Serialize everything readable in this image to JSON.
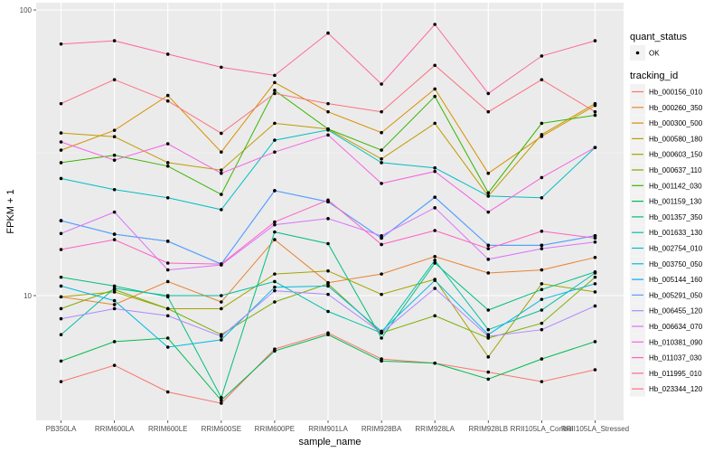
{
  "chart_data": {
    "type": "line",
    "title": "",
    "xlabel": "sample_name",
    "ylabel": "FPKM + 1",
    "y_scale": "log10",
    "ylim": [
      3.2,
      110
    ],
    "y_ticks": [
      {
        "value": 10,
        "label": "10"
      },
      {
        "value": 100,
        "label": "100"
      }
    ],
    "grid": true,
    "categories": [
      "PB350LA",
      "RRIM600LA",
      "RRIM600LE",
      "RRIM600SE",
      "RRIM600PE",
      "RRIM901LA",
      "RRIM928BA",
      "RRIM928LA",
      "RRIM928LB",
      "RRII105LA_Control",
      "RRII105LA_Stressed"
    ],
    "legend": {
      "placement": "right",
      "point_legend": {
        "title": "quant_status",
        "items": [
          "OK"
        ]
      },
      "color_legend_title": "tracking_id"
    },
    "series": [
      {
        "name": "Hb_000156_010",
        "color": "#F8766D",
        "values": [
          5.0,
          5.7,
          4.6,
          4.2,
          6.5,
          7.4,
          6.0,
          5.8,
          5.4,
          5.0,
          5.5
        ]
      },
      {
        "name": "Hb_000260_350",
        "color": "#EA8331",
        "values": [
          9.9,
          9.3,
          11.2,
          9.5,
          15.7,
          11.1,
          11.9,
          13.7,
          12.0,
          12.3,
          13.6
        ]
      },
      {
        "name": "Hb_000300_500",
        "color": "#D89000",
        "values": [
          32.3,
          37.9,
          50.2,
          31.8,
          55.7,
          44.0,
          37.2,
          52.9,
          26.8,
          36.1,
          46.3
        ]
      },
      {
        "name": "Hb_000580_180",
        "color": "#C09B00",
        "values": [
          37.1,
          36.0,
          29.2,
          27.5,
          40.1,
          38.3,
          30.1,
          40.1,
          22.3,
          36.6,
          47.0
        ]
      },
      {
        "name": "Hb_000603_150",
        "color": "#A3A500",
        "values": [
          9.9,
          10.3,
          9.0,
          9.0,
          11.9,
          12.2,
          10.1,
          11.4,
          6.1,
          11.0,
          10.3
        ]
      },
      {
        "name": "Hb_000637_110",
        "color": "#7CAE00",
        "values": [
          9.0,
          10.5,
          9.0,
          7.3,
          9.5,
          11.0,
          7.4,
          8.5,
          7.1,
          8.0,
          11.6
        ]
      },
      {
        "name": "Hb_001142_030",
        "color": "#39B600",
        "values": [
          29.2,
          31.0,
          28.4,
          22.6,
          52.3,
          38.3,
          32.3,
          49.8,
          22.9,
          40.1,
          42.8
        ]
      },
      {
        "name": "Hb_001159_130",
        "color": "#00BB4E",
        "values": [
          5.9,
          6.9,
          7.1,
          4.3,
          6.4,
          7.3,
          5.9,
          5.8,
          5.1,
          6.0,
          6.9
        ]
      },
      {
        "name": "Hb_001357_350",
        "color": "#00BF7D",
        "values": [
          11.6,
          10.8,
          9.9,
          4.4,
          16.7,
          15.2,
          7.1,
          13.0,
          8.9,
          10.5,
          12.1
        ]
      },
      {
        "name": "Hb_001633_130",
        "color": "#00C1A3",
        "values": [
          7.3,
          10.6,
          10.0,
          10.0,
          11.2,
          8.8,
          7.4,
          13.3,
          7.6,
          8.9,
          12.0
        ]
      },
      {
        "name": "Hb_002754_010",
        "color": "#00BFC4",
        "values": [
          25.7,
          23.5,
          22.0,
          20.0,
          35.0,
          38.0,
          29.2,
          28.0,
          22.3,
          22.0,
          33.0
        ]
      },
      {
        "name": "Hb_003750_050",
        "color": "#00B9E3",
        "values": [
          10.8,
          9.6,
          6.6,
          7.0,
          10.7,
          10.8,
          7.5,
          11.3,
          7.3,
          9.7,
          11.0
        ]
      },
      {
        "name": "Hb_005144_160",
        "color": "#00ADFA",
        "values": [
          18.3,
          16.4,
          15.5,
          12.9,
          23.3,
          21.3,
          15.9,
          22.1,
          15.0,
          15.0,
          16.2
        ]
      },
      {
        "name": "Hb_005291_050",
        "color": "#619CFF",
        "values": [
          18.3,
          16.4,
          15.5,
          12.9,
          23.3,
          21.3,
          15.9,
          22.1,
          15.0,
          15.0,
          16.2
        ]
      },
      {
        "name": "Hb_006455_120",
        "color": "#AE87FF",
        "values": [
          8.3,
          9.0,
          8.5,
          7.2,
          10.4,
          10.1,
          7.4,
          10.6,
          7.2,
          7.6,
          9.2
        ]
      },
      {
        "name": "Hb_006634_070",
        "color": "#DB72FB",
        "values": [
          16.5,
          19.6,
          12.3,
          12.8,
          17.7,
          18.6,
          16.2,
          20.3,
          13.4,
          14.6,
          15.4
        ]
      },
      {
        "name": "Hb_010381_090",
        "color": "#F564E3",
        "values": [
          34.5,
          29.8,
          34.0,
          26.8,
          31.8,
          36.5,
          24.7,
          27.2,
          19.6,
          25.9,
          33.0
        ]
      },
      {
        "name": "Hb_011037_030",
        "color": "#FF61C3",
        "values": [
          14.5,
          15.7,
          13.0,
          12.9,
          18.1,
          21.6,
          15.1,
          16.9,
          14.6,
          16.8,
          15.9
        ]
      },
      {
        "name": "Hb_011995_010",
        "color": "#FF67A4",
        "values": [
          76,
          78,
          70,
          63,
          59,
          83,
          55,
          89,
          51,
          69,
          78
        ]
      },
      {
        "name": "Hb_023344_120",
        "color": "#FC717F",
        "values": [
          47,
          57,
          48,
          37,
          51,
          47,
          44,
          64,
          44,
          57,
          44
        ]
      }
    ]
  }
}
